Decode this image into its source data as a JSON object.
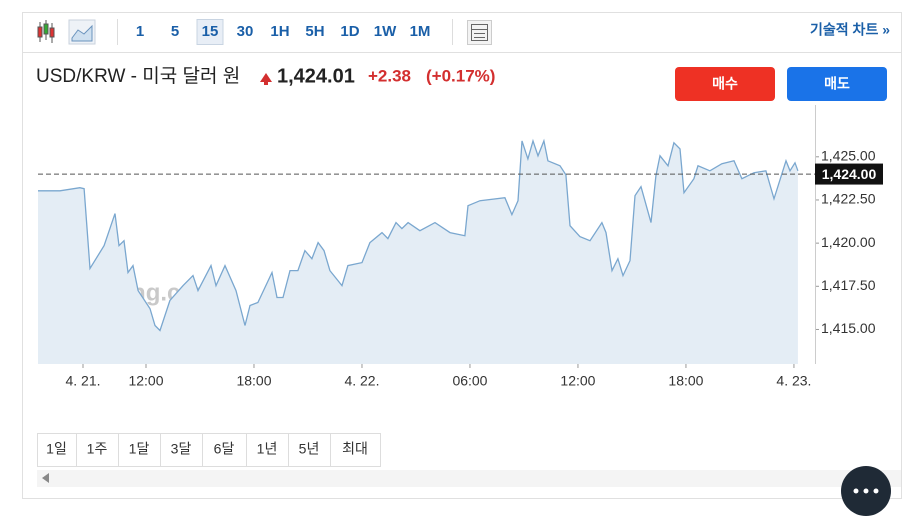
{
  "toolbar": {
    "intervals": [
      "1",
      "5",
      "15",
      "30",
      "1H",
      "5H",
      "1D",
      "1W",
      "1M"
    ],
    "active_interval": "15",
    "link": "기술적 차트 »"
  },
  "header": {
    "instrument": "USD/KRW - 미국 달러 원",
    "price": "1,424.01",
    "change": "+2.38",
    "change_pct": "(+0.17%)"
  },
  "buttons": {
    "buy": "매수",
    "sell": "매도"
  },
  "range_buttons": [
    "1일",
    "1주",
    "1달",
    "3달",
    "6달",
    "1년",
    "5년",
    "최대"
  ],
  "chart_data": {
    "type": "area",
    "watermark": "Investing.com",
    "color": "#7aa7cf",
    "fill": "#e4edf5",
    "x": [
      6.0,
      7.22,
      8.33,
      8.56,
      8.89,
      9.67,
      10.28,
      10.5,
      10.78,
      11.0,
      11.28,
      11.56,
      12.22,
      12.5,
      12.78,
      13.33,
      14.06,
      14.61,
      14.89,
      15.61,
      15.89,
      16.39,
      17.0,
      17.5,
      17.78,
      18.22,
      19.0,
      19.28,
      19.61,
      20.0,
      20.44,
      20.83,
      21.22,
      21.56,
      21.89,
      22.22,
      22.89,
      23.22,
      24.0,
      24.44,
      25.11,
      25.44,
      25.89,
      26.22,
      26.56,
      27.22,
      28.06,
      28.89,
      29.72,
      29.89,
      30.56,
      31.94,
      32.33,
      32.67,
      32.89,
      33.22,
      33.5,
      33.78,
      34.11,
      34.33,
      35.0,
      35.33,
      35.56,
      36.11,
      36.67,
      37.33,
      37.56,
      37.89,
      38.22,
      38.5,
      38.89,
      39.17,
      39.5,
      40.06,
      40.33,
      40.56,
      41.0,
      41.33,
      41.67,
      41.89,
      42.44,
      42.67,
      43.33,
      44.0,
      44.67,
      45.11,
      45.78,
      46.44,
      46.89,
      47.56,
      47.78,
      48.06,
      48.22
    ],
    "values": [
      1423.03,
      1423.03,
      1423.21,
      1423.15,
      1418.53,
      1419.86,
      1421.71,
      1419.86,
      1420.14,
      1418.3,
      1418.7,
      1417.25,
      1416.21,
      1415.23,
      1414.94,
      1416.68,
      1417.54,
      1418.12,
      1417.25,
      1418.7,
      1417.54,
      1418.7,
      1417.25,
      1415.23,
      1416.39,
      1416.56,
      1418.3,
      1416.85,
      1416.85,
      1418.41,
      1418.41,
      1419.57,
      1419.1,
      1420.03,
      1419.57,
      1418.41,
      1417.54,
      1418.7,
      1418.87,
      1420.03,
      1420.61,
      1420.26,
      1421.19,
      1420.84,
      1421.19,
      1420.72,
      1421.19,
      1420.61,
      1420.43,
      1422.17,
      1422.46,
      1422.63,
      1421.65,
      1422.46,
      1425.92,
      1424.88,
      1425.92,
      1425.06,
      1425.92,
      1424.77,
      1424.48,
      1423.96,
      1421.01,
      1420.38,
      1420.14,
      1421.19,
      1420.61,
      1418.41,
      1419.1,
      1418.12,
      1418.99,
      1422.75,
      1423.27,
      1421.19,
      1423.9,
      1425.06,
      1424.48,
      1425.81,
      1425.46,
      1422.92,
      1423.73,
      1424.48,
      1424.19,
      1424.6,
      1424.77,
      1423.73,
      1424.08,
      1424.19,
      1422.57,
      1424.77,
      1424.19,
      1424.65,
      1424.19
    ],
    "xlim": [
      6,
      49.17
    ],
    "xticks": [
      {
        "value": 8.5,
        "label": "4. 21."
      },
      {
        "value": 12,
        "label": "12:00"
      },
      {
        "value": 18,
        "label": "18:00"
      },
      {
        "value": 24,
        "label": "4. 22."
      },
      {
        "value": 30,
        "label": "06:00"
      },
      {
        "value": 36,
        "label": "12:00"
      },
      {
        "value": 42,
        "label": "18:00"
      },
      {
        "value": 48,
        "label": "4. 23."
      }
    ],
    "ylim": [
      1413,
      1428
    ],
    "yticks": [
      {
        "value": 1415,
        "label": "1,415.00"
      },
      {
        "value": 1417.5,
        "label": "1,417.50"
      },
      {
        "value": 1420,
        "label": "1,420.00"
      },
      {
        "value": 1422.5,
        "label": "1,422.50"
      },
      {
        "value": 1425,
        "label": "1,425.00"
      }
    ],
    "price_line": {
      "value": 1424,
      "label": "1,424.00"
    }
  }
}
